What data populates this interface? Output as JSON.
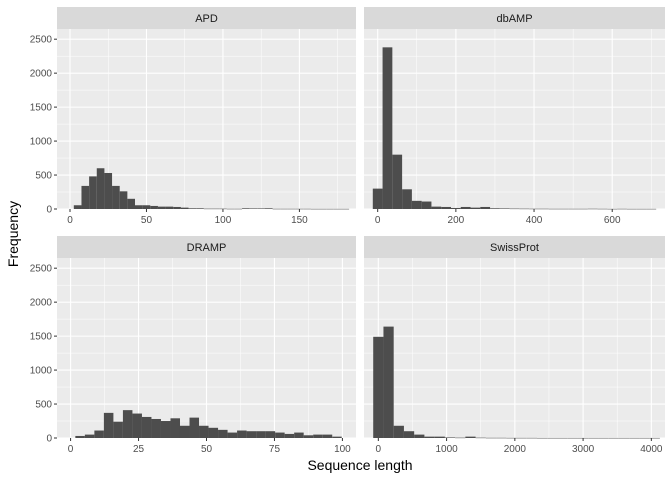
{
  "chart_data": {
    "type": "bar",
    "layout": "facet_wrap 2x2, shared y axis, free x axes",
    "xlabel": "Sequence length",
    "ylabel": "Frequency",
    "ylim": [
      0,
      2650
    ],
    "y_ticks": [
      0,
      500,
      1000,
      1500,
      2000,
      2500
    ],
    "bar_color": "#4d4d4d",
    "panel_bg": "#ebebeb",
    "strip_bg": "#d9d9d9",
    "grid_color": "#ffffff",
    "panels": [
      {
        "title": "APD",
        "xlim": [
          -8.5,
          187
        ],
        "x_ticks": [
          0,
          50,
          100,
          150
        ],
        "bins": [
          [
            5,
            55
          ],
          [
            10,
            340
          ],
          [
            15,
            480
          ],
          [
            20,
            600
          ],
          [
            25,
            530
          ],
          [
            30,
            340
          ],
          [
            35,
            260
          ],
          [
            40,
            150
          ],
          [
            45,
            55
          ],
          [
            50,
            55
          ],
          [
            55,
            45
          ],
          [
            60,
            35
          ],
          [
            65,
            35
          ],
          [
            70,
            30
          ],
          [
            75,
            20
          ],
          [
            80,
            10
          ],
          [
            85,
            10
          ],
          [
            90,
            5
          ],
          [
            95,
            5
          ],
          [
            100,
            5
          ],
          [
            105,
            3
          ],
          [
            110,
            3
          ],
          [
            115,
            10
          ],
          [
            120,
            8
          ],
          [
            125,
            8
          ],
          [
            130,
            10
          ],
          [
            135,
            3
          ],
          [
            140,
            3
          ],
          [
            145,
            3
          ],
          [
            150,
            3
          ],
          [
            155,
            3
          ],
          [
            160,
            2
          ],
          [
            165,
            2
          ],
          [
            170,
            2
          ],
          [
            175,
            2
          ],
          [
            180,
            2
          ]
        ]
      },
      {
        "title": "dbAMP",
        "xlim": [
          -35,
          735
        ],
        "x_ticks": [
          0,
          200,
          400,
          600
        ],
        "bins": [
          [
            0,
            300
          ],
          [
            25,
            2380
          ],
          [
            50,
            800
          ],
          [
            75,
            290
          ],
          [
            100,
            120
          ],
          [
            125,
            110
          ],
          [
            150,
            35
          ],
          [
            175,
            30
          ],
          [
            200,
            15
          ],
          [
            225,
            30
          ],
          [
            250,
            20
          ],
          [
            275,
            30
          ],
          [
            300,
            10
          ],
          [
            325,
            8
          ],
          [
            350,
            6
          ],
          [
            375,
            5
          ],
          [
            400,
            4
          ],
          [
            425,
            4
          ],
          [
            450,
            3
          ],
          [
            475,
            3
          ],
          [
            500,
            3
          ],
          [
            525,
            3
          ],
          [
            550,
            4
          ],
          [
            575,
            3
          ],
          [
            600,
            2
          ],
          [
            625,
            3
          ],
          [
            650,
            2
          ],
          [
            675,
            2
          ],
          [
            700,
            2
          ]
        ]
      },
      {
        "title": "DRAMP",
        "xlim": [
          -5,
          105
        ],
        "x_ticks": [
          0,
          25,
          50,
          75,
          100
        ],
        "bins": [
          [
            3.5,
            30
          ],
          [
            7,
            50
          ],
          [
            10.5,
            110
          ],
          [
            14,
            370
          ],
          [
            17.5,
            240
          ],
          [
            21,
            410
          ],
          [
            24.5,
            360
          ],
          [
            28,
            310
          ],
          [
            31.5,
            280
          ],
          [
            35,
            250
          ],
          [
            38.5,
            290
          ],
          [
            42,
            180
          ],
          [
            45.5,
            300
          ],
          [
            49,
            180
          ],
          [
            52.5,
            150
          ],
          [
            56,
            120
          ],
          [
            59.5,
            80
          ],
          [
            63,
            110
          ],
          [
            66.5,
            100
          ],
          [
            70,
            100
          ],
          [
            73.5,
            100
          ],
          [
            77,
            80
          ],
          [
            80.5,
            60
          ],
          [
            84,
            80
          ],
          [
            87.5,
            40
          ],
          [
            91,
            50
          ],
          [
            94.5,
            50
          ],
          [
            98,
            20
          ]
        ]
      },
      {
        "title": "SwissProt",
        "xlim": [
          -210,
          4200
        ],
        "x_ticks": [
          0,
          1000,
          2000,
          3000,
          4000
        ],
        "bins": [
          [
            0,
            1490
          ],
          [
            150,
            1640
          ],
          [
            300,
            180
          ],
          [
            450,
            100
          ],
          [
            600,
            50
          ],
          [
            750,
            20
          ],
          [
            900,
            20
          ],
          [
            1050,
            8
          ],
          [
            1200,
            5
          ],
          [
            1350,
            20
          ],
          [
            1500,
            5
          ],
          [
            1650,
            3
          ],
          [
            1800,
            3
          ],
          [
            1950,
            2
          ],
          [
            2100,
            2
          ],
          [
            2250,
            2
          ],
          [
            2400,
            1
          ],
          [
            2550,
            1
          ],
          [
            2700,
            1
          ],
          [
            2850,
            1
          ],
          [
            3000,
            1
          ],
          [
            3150,
            1
          ],
          [
            3300,
            1
          ],
          [
            3450,
            1
          ],
          [
            3600,
            1
          ],
          [
            3750,
            1
          ],
          [
            3900,
            1
          ],
          [
            4050,
            1
          ]
        ]
      }
    ]
  }
}
